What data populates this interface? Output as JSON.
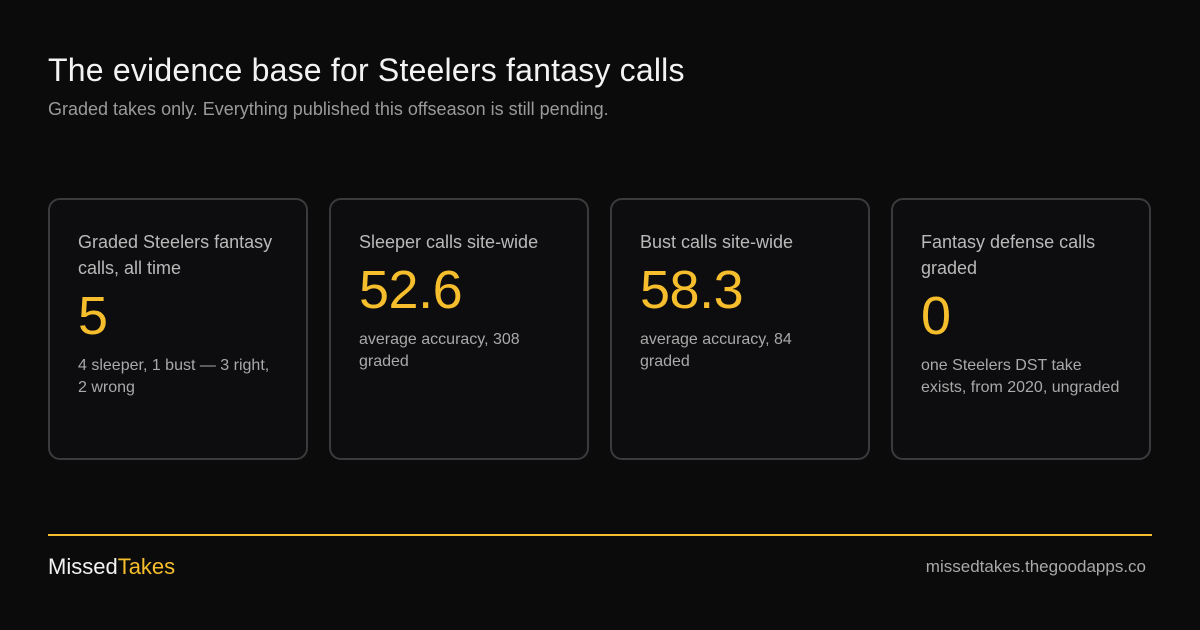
{
  "header": {
    "title": "The evidence base for Steelers fantasy calls",
    "subtitle": "Graded takes only. Everything published this offseason is still pending."
  },
  "cards": [
    {
      "label": "Graded Steelers fantasy calls, all time",
      "value": "5",
      "note": "4 sleeper, 1 bust — 3 right, 2 wrong"
    },
    {
      "label": "Sleeper calls site-wide",
      "value": "52.6",
      "note": "average accuracy, 308 graded"
    },
    {
      "label": "Bust calls site-wide",
      "value": "58.3",
      "note": "average accuracy, 84 graded"
    },
    {
      "label": "Fantasy defense calls graded",
      "value": "0",
      "note": "one Steelers DST take exists, from 2020, ungraded"
    }
  ],
  "footer": {
    "brand_part1": "Missed",
    "brand_part2": "Takes",
    "site": "missedtakes.thegoodapps.co"
  },
  "colors": {
    "background": "#0b0b0b",
    "accent": "#f6be2c",
    "card_border": "#3b3b3e"
  }
}
